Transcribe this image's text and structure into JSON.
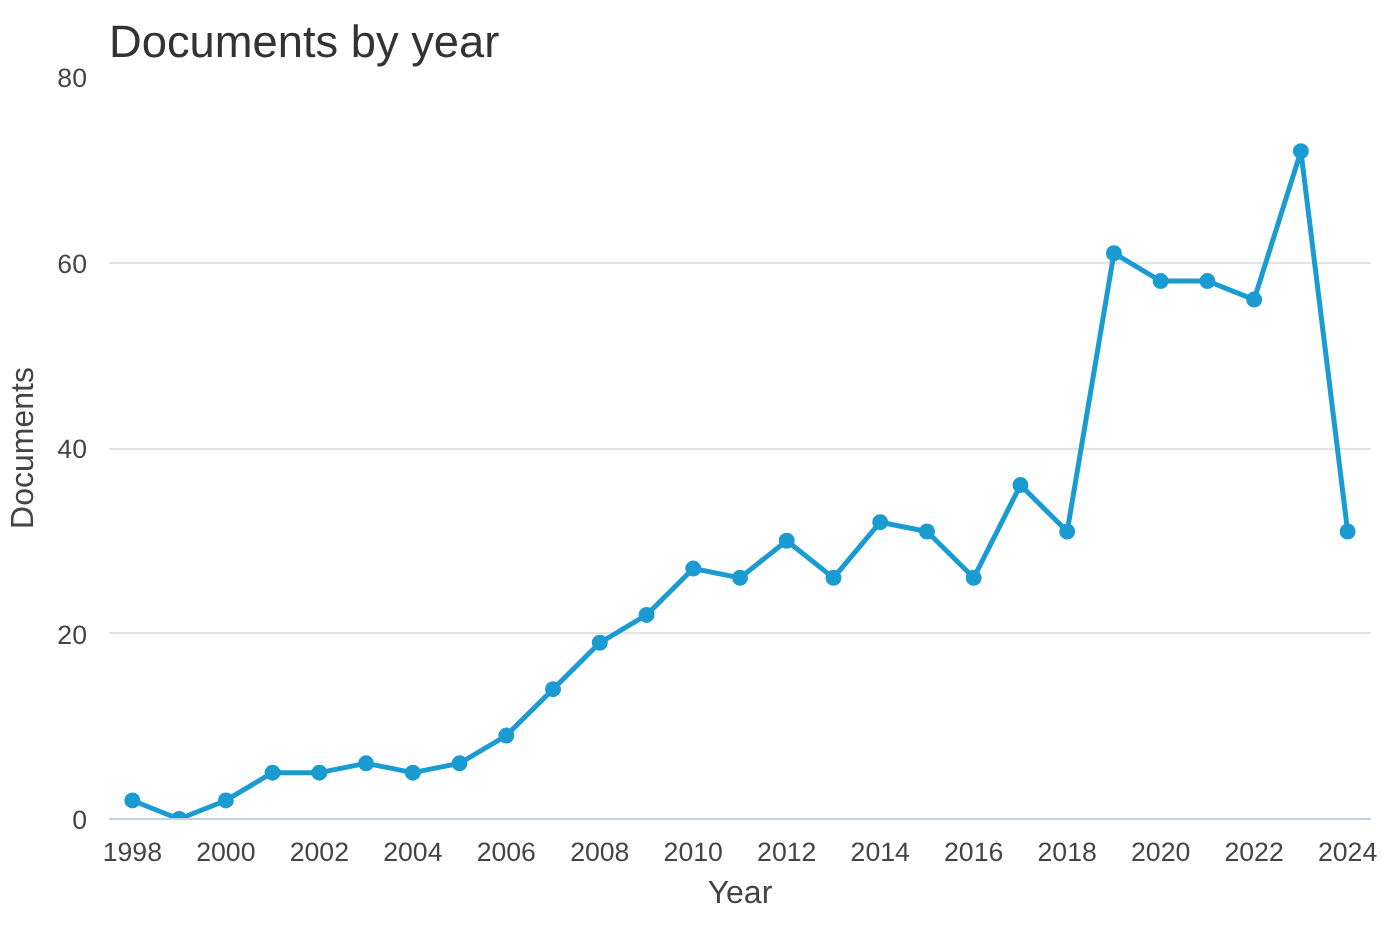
{
  "chart_data": {
    "type": "line",
    "title": "Documents by year",
    "xlabel": "Year",
    "ylabel": "Documents",
    "x": [
      1998,
      1999,
      2000,
      2001,
      2002,
      2003,
      2004,
      2005,
      2006,
      2007,
      2008,
      2009,
      2010,
      2011,
      2012,
      2013,
      2014,
      2015,
      2016,
      2017,
      2018,
      2019,
      2020,
      2021,
      2022,
      2023,
      2024
    ],
    "series": [
      {
        "color": "#1a9bd1",
        "values": [
          2,
          0,
          2,
          5,
          5,
          6,
          5,
          6,
          9,
          14,
          19,
          22,
          27,
          26,
          30,
          26,
          32,
          31,
          26,
          36,
          31,
          61,
          58,
          58,
          56,
          72,
          31
        ]
      }
    ],
    "xlim": [
      1997.5,
      2024.5
    ],
    "ylim": [
      0,
      80
    ],
    "xticks": [
      1998,
      2000,
      2002,
      2004,
      2006,
      2008,
      2010,
      2012,
      2014,
      2016,
      2018,
      2020,
      2022,
      2024
    ],
    "yticks": [
      0,
      20,
      40,
      60,
      80
    ],
    "grid": "y",
    "marker": "circle",
    "line_style": "solid"
  }
}
